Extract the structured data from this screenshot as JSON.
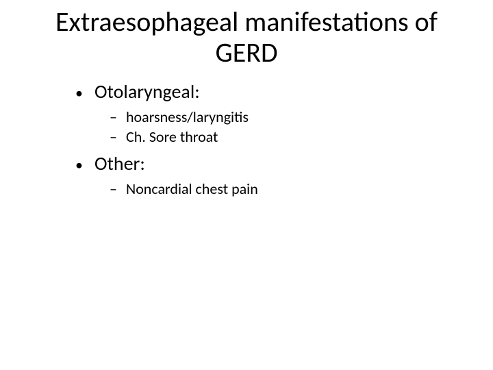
{
  "slide": {
    "title_line1": "Extraesophageal manifestations of",
    "title_line2": "GERD",
    "bullets": [
      {
        "label": "Otolaryngeal:",
        "sub": [
          "hoarsness/laryngitis",
          "Ch. Sore throat"
        ]
      },
      {
        "label": "Other:",
        "sub": [
          "Noncardial chest pain"
        ]
      }
    ]
  },
  "style": {
    "background_color": "#ffffff",
    "text_color": "#000000",
    "title_fontsize": 40,
    "level1_fontsize": 28,
    "level2_fontsize": 22,
    "font_family": "Calibri"
  }
}
